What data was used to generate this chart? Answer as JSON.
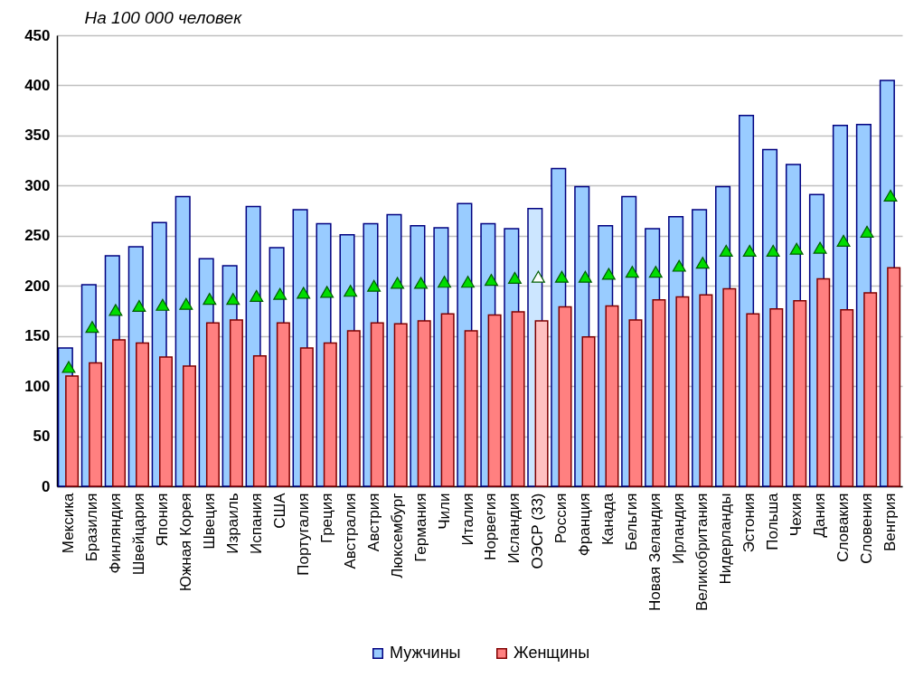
{
  "chart_data": {
    "type": "bar",
    "ylabel": "На 100 000 человек",
    "categories": [
      "Мексика",
      "Бразилия",
      "Финляндия",
      "Швейцария",
      "Япония",
      "Южная Корея",
      "Швеция",
      "Израиль",
      "Испания",
      "США",
      "Португалия",
      "Греция",
      "Австралия",
      "Австрия",
      "Люксембург",
      "Германия",
      "Чили",
      "Италия",
      "Норвегия",
      "Исландия",
      "ОЭСР (33)",
      "Россия",
      "Франция",
      "Канада",
      "Бельгия",
      "Новая Зеландия",
      "Ирландия",
      "Великобритания",
      "Нидерланды",
      "Эстония",
      "Польша",
      "Чехия",
      "Дания",
      "Словакия",
      "Словения",
      "Венгрия"
    ],
    "ylim": [
      0,
      450
    ],
    "yticks": [
      0,
      50,
      100,
      150,
      200,
      250,
      300,
      350,
      400,
      450
    ],
    "grid": "y",
    "legend": "bottom",
    "series": [
      {
        "name": "Мужчины",
        "color": "#99ccff",
        "colors": [
          "#99ccff",
          "#99ccff",
          "#99ccff",
          "#99ccff",
          "#99ccff",
          "#99ccff",
          "#99ccff",
          "#99ccff",
          "#99ccff",
          "#99ccff",
          "#99ccff",
          "#99ccff",
          "#99ccff",
          "#99ccff",
          "#99ccff",
          "#99ccff",
          "#99ccff",
          "#99ccff",
          "#99ccff",
          "#99ccff",
          "#cce6ff",
          "#99ccff",
          "#99ccff",
          "#99ccff",
          "#99ccff",
          "#99ccff",
          "#99ccff",
          "#99ccff",
          "#99ccff",
          "#99ccff",
          "#99ccff",
          "#99ccff",
          "#99ccff",
          "#99ccff",
          "#99ccff",
          "#99ccff"
        ],
        "values": [
          138,
          201,
          230,
          239,
          263,
          289,
          227,
          220,
          279,
          238,
          276,
          262,
          251,
          262,
          271,
          260,
          258,
          282,
          262,
          257,
          277,
          317,
          299,
          260,
          289,
          257,
          269,
          276,
          299,
          370,
          336,
          321,
          291,
          360,
          361,
          405
        ]
      },
      {
        "name": "Женщины",
        "color": "#ff8080",
        "colors": [
          "#ff8080",
          "#ff8080",
          "#ff8080",
          "#ff8080",
          "#ff8080",
          "#ff8080",
          "#ff8080",
          "#ff8080",
          "#ff8080",
          "#ff8080",
          "#ff8080",
          "#ff8080",
          "#ff8080",
          "#ff8080",
          "#ff8080",
          "#ff8080",
          "#ff8080",
          "#ff8080",
          "#ff8080",
          "#ff8080",
          "#ffc0c0",
          "#ff8080",
          "#ff8080",
          "#ff8080",
          "#ff8080",
          "#ff8080",
          "#ff8080",
          "#ff8080",
          "#ff8080",
          "#ff8080",
          "#ff8080",
          "#ff8080",
          "#ff8080",
          "#ff8080",
          "#ff8080",
          "#ff8080"
        ],
        "values": [
          110,
          123,
          146,
          143,
          129,
          120,
          163,
          166,
          130,
          163,
          138,
          143,
          155,
          163,
          162,
          165,
          172,
          155,
          171,
          174,
          165,
          179,
          149,
          180,
          166,
          186,
          189,
          191,
          197,
          172,
          177,
          185,
          207,
          176,
          193,
          218
        ]
      },
      {
        "type": "scatter",
        "marker": "triangle",
        "color": "#00dd00",
        "colors": [
          "#00dd00",
          "#00dd00",
          "#00dd00",
          "#00dd00",
          "#00dd00",
          "#00dd00",
          "#00dd00",
          "#00dd00",
          "#00dd00",
          "#00dd00",
          "#00dd00",
          "#00dd00",
          "#00dd00",
          "#00dd00",
          "#00dd00",
          "#00dd00",
          "#00dd00",
          "#00dd00",
          "#00dd00",
          "#00dd00",
          "#ffffff",
          "#00dd00",
          "#00dd00",
          "#00dd00",
          "#00dd00",
          "#00dd00",
          "#00dd00",
          "#00dd00",
          "#00dd00",
          "#00dd00",
          "#00dd00",
          "#00dd00",
          "#00dd00",
          "#00dd00",
          "#00dd00",
          "#00dd00"
        ],
        "values": [
          119,
          159,
          176,
          180,
          181,
          182,
          187,
          187,
          190,
          192,
          193,
          194,
          195,
          200,
          203,
          203,
          204,
          204,
          206,
          208,
          209,
          209,
          209,
          212,
          214,
          214,
          220,
          223,
          235,
          235,
          235,
          237,
          238,
          245,
          254,
          290
        ]
      }
    ]
  }
}
